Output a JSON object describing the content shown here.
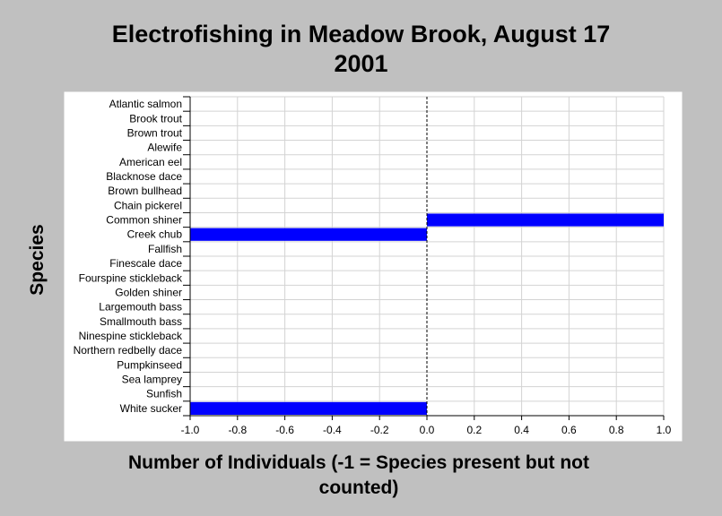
{
  "chart_data": {
    "type": "bar",
    "orientation": "horizontal",
    "title_lines": [
      "Electrofishing in Meadow Brook, August 17",
      "2001"
    ],
    "xlabel_lines": [
      "Number of Individuals (-1 = Species present but not",
      "counted)"
    ],
    "ylabel": "Species",
    "categories": [
      "Atlantic salmon",
      "Brook trout",
      "Brown trout",
      "Alewife",
      "American eel",
      "Blacknose dace",
      "Brown bullhead",
      "Chain pickerel",
      "Common shiner",
      "Creek chub",
      "Fallfish",
      "Finescale dace",
      "Fourspine stickleback",
      "Golden shiner",
      "Largemouth bass",
      "Smallmouth bass",
      "Ninespine stickleback",
      "Northern redbelly dace",
      "Pumpkinseed",
      "Sea lamprey",
      "Sunfish",
      "White sucker"
    ],
    "values": [
      0,
      0,
      0,
      0,
      0,
      0,
      0,
      0,
      1,
      -1,
      0,
      0,
      0,
      0,
      0,
      0,
      0,
      0,
      0,
      0,
      0,
      -1
    ],
    "xlim": [
      -1.0,
      1.0
    ],
    "xticks": [
      "-1.0",
      "-0.8",
      "-0.6",
      "-0.4",
      "-0.2",
      "0.0",
      "0.2",
      "0.4",
      "0.6",
      "0.8",
      "1.0"
    ],
    "bar_color": "#0000ff",
    "grid": true,
    "zero_line": "dashed"
  }
}
